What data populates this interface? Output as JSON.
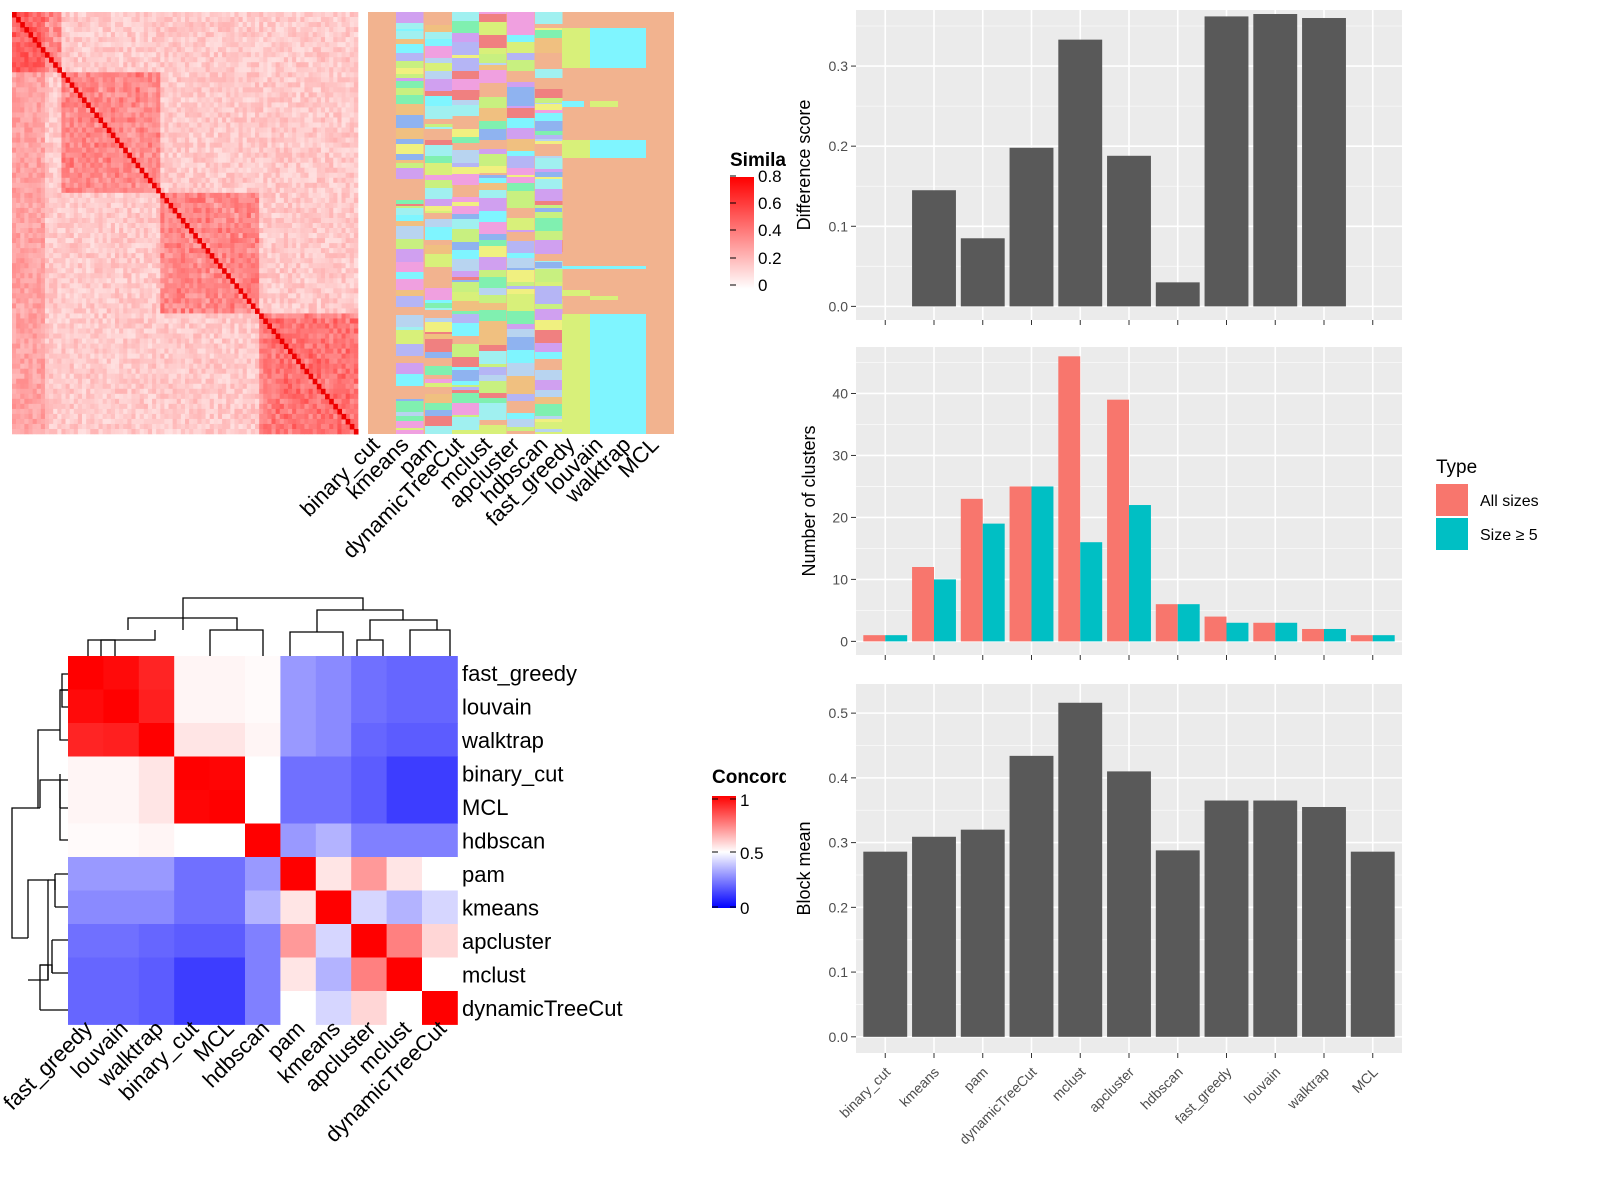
{
  "chart_data": [
    {
      "type": "heatmap",
      "panel": "cell-similarity-heatmap",
      "legend_title": "Similarity",
      "legend_ticks": [
        "0.8",
        "0.6",
        "0.4",
        "0.2",
        "0"
      ],
      "colors": {
        "low": "#ffffff",
        "high": "#ff0000"
      }
    },
    {
      "type": "heatmap",
      "panel": "cluster-assignment-annotation",
      "categories": [
        "binary_cut",
        "kmeans",
        "pam",
        "dynamicTreeCut",
        "mclust",
        "apcluster",
        "hdbscan",
        "fast_greedy",
        "louvain",
        "walktrap",
        "MCL"
      ],
      "colors": {
        "background": "#f2b38f",
        "palette": [
          "#b8d4f0",
          "#8fb3f0",
          "#f0a0e0",
          "#c8f080",
          "#f0f080",
          "#80f0b0",
          "#f0c080",
          "#d0a0f0",
          "#f08080",
          "#a0f0f0",
          "#d8f07a",
          "#7ff5ff",
          "#b5b5f5",
          "#f5c0a0",
          "#ffffa0",
          "#80c0ff"
        ]
      }
    },
    {
      "type": "heatmap",
      "panel": "concordance-heatmap",
      "legend_title": "Concordance",
      "legend_ticks": [
        "1",
        "0.5",
        "0"
      ],
      "rows": [
        "fast_greedy",
        "louvain",
        "walktrap",
        "binary_cut",
        "MCL",
        "hdbscan",
        "pam",
        "kmeans",
        "apcluster",
        "mclust",
        "dynamicTreeCut"
      ],
      "columns": [
        "fast_greedy",
        "louvain",
        "walktrap",
        "binary_cut",
        "MCL",
        "hdbscan",
        "pam",
        "kmeans",
        "apcluster",
        "mclust",
        "dynamicTreeCut"
      ],
      "values": [
        [
          1.0,
          0.98,
          0.93,
          0.52,
          0.52,
          0.51,
          0.3,
          0.27,
          0.22,
          0.2,
          0.2
        ],
        [
          0.98,
          1.0,
          0.94,
          0.52,
          0.52,
          0.51,
          0.3,
          0.27,
          0.22,
          0.2,
          0.2
        ],
        [
          0.93,
          0.94,
          1.0,
          0.55,
          0.55,
          0.52,
          0.3,
          0.27,
          0.2,
          0.18,
          0.18
        ],
        [
          0.52,
          0.52,
          0.55,
          1.0,
          0.99,
          0.5,
          0.22,
          0.22,
          0.18,
          0.12,
          0.12
        ],
        [
          0.52,
          0.52,
          0.55,
          0.99,
          1.0,
          0.5,
          0.22,
          0.22,
          0.18,
          0.12,
          0.12
        ],
        [
          0.51,
          0.51,
          0.52,
          0.5,
          0.5,
          1.0,
          0.3,
          0.35,
          0.25,
          0.25,
          0.25
        ],
        [
          0.3,
          0.3,
          0.3,
          0.22,
          0.22,
          0.3,
          1.0,
          0.55,
          0.7,
          0.55,
          0.5
        ],
        [
          0.27,
          0.27,
          0.27,
          0.22,
          0.22,
          0.35,
          0.55,
          1.0,
          0.42,
          0.35,
          0.42
        ],
        [
          0.22,
          0.22,
          0.2,
          0.18,
          0.18,
          0.25,
          0.7,
          0.42,
          1.0,
          0.75,
          0.58
        ],
        [
          0.2,
          0.2,
          0.18,
          0.12,
          0.12,
          0.25,
          0.55,
          0.35,
          0.75,
          1.0,
          0.5
        ],
        [
          0.2,
          0.2,
          0.18,
          0.12,
          0.12,
          0.25,
          0.5,
          0.42,
          0.58,
          0.5,
          1.0
        ]
      ],
      "colors": {
        "low": "#0000ff",
        "mid": "#ffffff",
        "high": "#ff0000"
      }
    },
    {
      "type": "bar",
      "panel": "difference-score",
      "categories": [
        "binary_cut",
        "kmeans",
        "pam",
        "dynamicTreeCut",
        "mclust",
        "apcluster",
        "hdbscan",
        "fast_greedy",
        "louvain",
        "walktrap",
        "MCL"
      ],
      "values": [
        0,
        0.145,
        0.085,
        0.198,
        0.333,
        0.188,
        0.03,
        0.362,
        0.365,
        0.36,
        0
      ],
      "ylabel": "Difference score",
      "ylim": [
        -0.017,
        0.37
      ],
      "yticks": [
        "0.0",
        "0.1",
        "0.2",
        "0.3"
      ],
      "grid": true,
      "colors": {
        "bar": "#595959",
        "panel": "#ebebeb"
      }
    },
    {
      "type": "bar",
      "panel": "number-of-clusters",
      "categories": [
        "binary_cut",
        "kmeans",
        "pam",
        "dynamicTreeCut",
        "mclust",
        "apcluster",
        "hdbscan",
        "fast_greedy",
        "louvain",
        "walktrap",
        "MCL"
      ],
      "series": [
        {
          "name": "All sizes",
          "values": [
            1,
            12,
            23,
            25,
            46,
            39,
            6,
            4,
            3,
            2,
            1
          ]
        },
        {
          "name": "Size ≥ 5",
          "values": [
            1,
            10,
            19,
            25,
            16,
            22,
            6,
            3,
            3,
            2,
            1
          ]
        }
      ],
      "ylabel": "Number of clusters",
      "ylim": [
        -2.2,
        47.5
      ],
      "yticks": [
        "0",
        "10",
        "20",
        "30",
        "40"
      ],
      "legend_title": "Type",
      "legend_position": "right",
      "grid": true,
      "colors": {
        "All sizes": "#f8766d",
        "Size ≥ 5": "#00bfc4",
        "panel": "#ebebeb"
      }
    },
    {
      "type": "bar",
      "panel": "block-mean",
      "categories": [
        "binary_cut",
        "kmeans",
        "pam",
        "dynamicTreeCut",
        "mclust",
        "apcluster",
        "hdbscan",
        "fast_greedy",
        "louvain",
        "walktrap",
        "MCL"
      ],
      "values": [
        0.286,
        0.309,
        0.32,
        0.434,
        0.516,
        0.41,
        0.288,
        0.365,
        0.365,
        0.355,
        0.286
      ],
      "ylabel": "Block mean",
      "ylim": [
        -0.025,
        0.545
      ],
      "yticks": [
        "0.0",
        "0.1",
        "0.2",
        "0.3",
        "0.4",
        "0.5"
      ],
      "xlabel": "",
      "grid": true,
      "colors": {
        "bar": "#595959",
        "panel": "#ebebeb"
      }
    }
  ]
}
